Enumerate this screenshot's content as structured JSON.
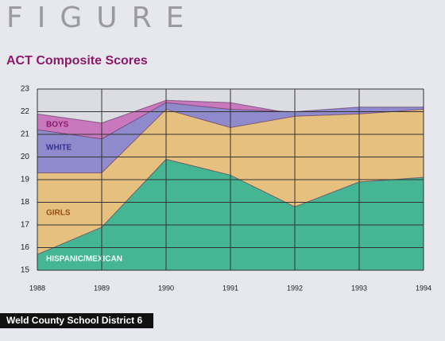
{
  "header": "FIGURE",
  "chart_data": {
    "type": "area",
    "title": "ACT Composite Scores",
    "x": [
      1988,
      1989,
      1990,
      1991,
      1992,
      1993,
      1994
    ],
    "xlim": [
      1988,
      1994
    ],
    "xticks": [
      1988,
      1989,
      1990,
      1991,
      1992,
      1993,
      1994
    ],
    "ylim": [
      15,
      23
    ],
    "yticks": [
      15,
      16,
      17,
      18,
      19,
      20,
      21,
      22,
      23
    ],
    "grid": true,
    "series": [
      {
        "name": "BOYS",
        "color": "#c878bd",
        "values": [
          21.9,
          21.5,
          22.5,
          22.4,
          21.9,
          21.5,
          22.1
        ]
      },
      {
        "name": "WHITE",
        "color": "#8e8acb",
        "values": [
          21.2,
          20.8,
          22.4,
          22.1,
          22.0,
          22.2,
          22.2
        ]
      },
      {
        "name": "GIRLS",
        "color": "#e6c07e",
        "values": [
          19.3,
          19.3,
          22.1,
          21.3,
          21.8,
          21.9,
          22.1
        ]
      },
      {
        "name": "HISPANIC/MEXICAN",
        "color": "#45b594",
        "values": [
          15.7,
          16.9,
          19.9,
          19.2,
          17.8,
          18.9,
          19.1
        ]
      }
    ],
    "source": "Weld County School District 6"
  }
}
